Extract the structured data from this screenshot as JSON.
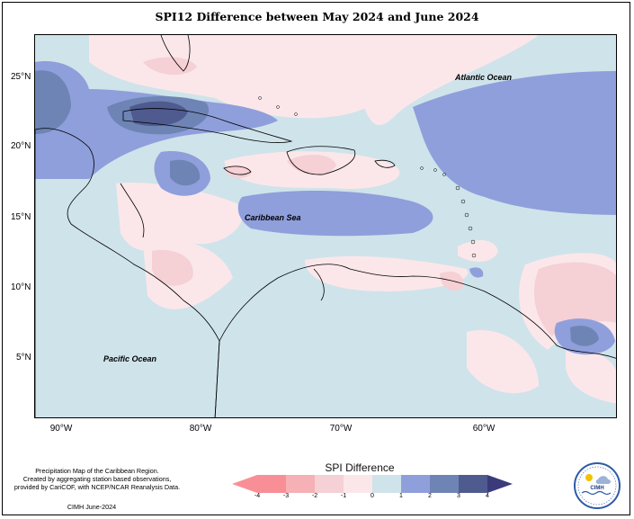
{
  "title": "SPI12 Difference between May 2024 and June 2024",
  "map": {
    "lat_labels": [
      "25°N",
      "20°N",
      "15°N",
      "10°N",
      "5°N"
    ],
    "lon_labels": [
      "90°W",
      "80°W",
      "70°W",
      "60°W"
    ],
    "ocean_labels": {
      "atlantic": "Atlantic Ocean",
      "caribbean": "Caribbean Sea",
      "pacific": "Pacific Ocean"
    }
  },
  "legend": {
    "title": "SPI Difference",
    "ticks": [
      "-4",
      "-3",
      "-2",
      "-1",
      "0",
      "1",
      "2",
      "3",
      "4"
    ],
    "colors": [
      "#f88f96",
      "#f5b1b6",
      "#f5d0d5",
      "#fbe7ea",
      "#cfe3ea",
      "#8f9fdb",
      "#6e84b5",
      "#4f5b8f",
      "#3b3a7a"
    ]
  },
  "credit": {
    "line1": "Precipitation Map of the Caribbean Region.",
    "line2": "Created by aggregating station based observations,",
    "line3": "provided by CariCOF, with NCEP/NCAR Reanalysis Data.",
    "footer": "CIMH June-2024"
  },
  "logo": {
    "text": "CIMH"
  }
}
